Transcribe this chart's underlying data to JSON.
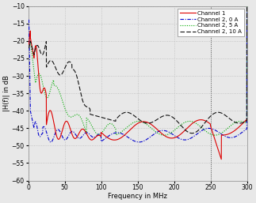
{
  "title": "",
  "xlabel": "Frequency in MHz",
  "ylabel": "|H(f)| in dB",
  "xlim": [
    0,
    300
  ],
  "ylim": [
    -60,
    -10
  ],
  "yticks": [
    -60,
    -55,
    -50,
    -45,
    -40,
    -35,
    -30,
    -25,
    -20,
    -15,
    -10
  ],
  "xticks": [
    0,
    50,
    100,
    150,
    200,
    250,
    300
  ],
  "legend": [
    "Channel 1",
    "Channel 2, 0 A",
    "Channel 2, 5 A",
    "Channel 2, 10 A"
  ],
  "line_colors": [
    "#dd0000",
    "#0000cc",
    "#00aa00",
    "#111111"
  ],
  "bg_color": "#e8e8e8",
  "grid_color": "#bbbbbb"
}
